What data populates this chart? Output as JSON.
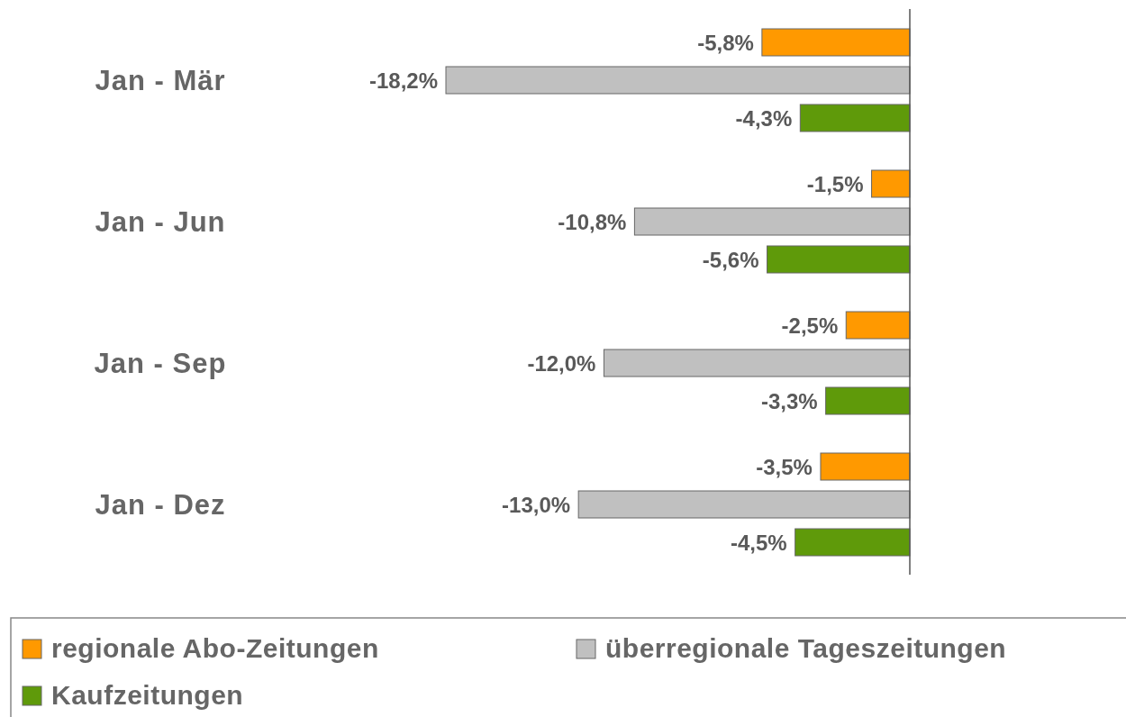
{
  "chart_data": {
    "type": "bar",
    "orientation": "horizontal",
    "categories": [
      "Jan - Mär",
      "Jan - Jun",
      "Jan - Sep",
      "Jan - Dez"
    ],
    "series": [
      {
        "name": "regionale Abo-Zeitungen",
        "color": "#ff9900",
        "values": [
          -5.8,
          -1.5,
          -2.5,
          -3.5
        ],
        "value_labels": [
          "-5,8%",
          "-1,5%",
          "-2,5%",
          "-3,5%"
        ]
      },
      {
        "name": "überregionale Tageszeitungen",
        "color": "#c0c0c0",
        "values": [
          -18.2,
          -10.8,
          -12.0,
          -13.0
        ],
        "value_labels": [
          "-18,2%",
          "-10,8%",
          "-12,0%",
          "-13,0%"
        ]
      },
      {
        "name": "Kaufzeitungen",
        "color": "#5f9a0a",
        "values": [
          -4.3,
          -5.6,
          -3.3,
          -4.5
        ],
        "value_labels": [
          "-4,3%",
          "-5,6%",
          "-3,3%",
          "-4,5%"
        ]
      }
    ],
    "legend": "bottom"
  }
}
